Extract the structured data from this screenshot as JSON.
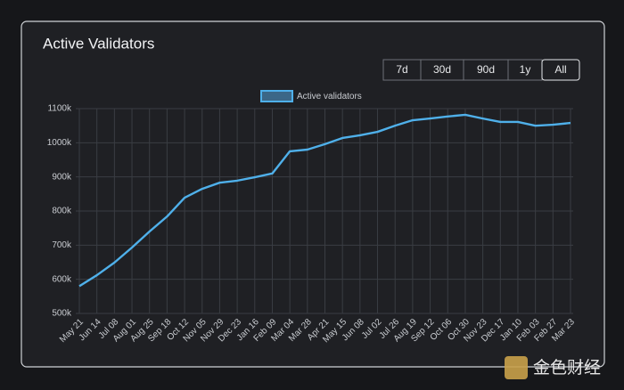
{
  "chart_data": {
    "type": "line",
    "title": "Active Validators",
    "categories": [
      "May 21",
      "Jun 14",
      "Jul 08",
      "Aug 01",
      "Aug 25",
      "Sep 18",
      "Oct 12",
      "Nov 05",
      "Nov 29",
      "Dec 23",
      "Jan 16",
      "Feb 09",
      "Mar 04",
      "Mar 28",
      "Apr 21",
      "May 15",
      "Jun 08",
      "Jul 02",
      "Jul 26",
      "Aug 19",
      "Sep 12",
      "Oct 06",
      "Oct 30",
      "Nov 23",
      "Dec 17",
      "Jan 10",
      "Feb 03",
      "Feb 27",
      "Mar 23"
    ],
    "series": [
      {
        "name": "Active validators",
        "color": "#4fb0ea",
        "values": [
          580000,
          612000,
          649000,
          693000,
          740000,
          784000,
          839000,
          865000,
          883000,
          889000,
          899000,
          910000,
          975000,
          980000,
          996000,
          1014000,
          1022000,
          1032000,
          1050000,
          1066000,
          1071000,
          1077000,
          1082000,
          1071000,
          1061000,
          1061000,
          1050000,
          1053000,
          1058000
        ]
      }
    ],
    "ylim": [
      500000,
      1100000
    ],
    "yticks": [
      {
        "value": 500000,
        "label": "500k"
      },
      {
        "value": 600000,
        "label": "600k"
      },
      {
        "value": 700000,
        "label": "700k"
      },
      {
        "value": 800000,
        "label": "800k"
      },
      {
        "value": 900000,
        "label": "900k"
      },
      {
        "value": 1000000,
        "label": "1000k"
      },
      {
        "value": 1100000,
        "label": "1100k"
      }
    ],
    "grid": true,
    "legend": "top"
  },
  "range_buttons": [
    "7d",
    "30d",
    "90d",
    "1y",
    "All"
  ],
  "selected_button": 4,
  "watermark": "金色财经"
}
